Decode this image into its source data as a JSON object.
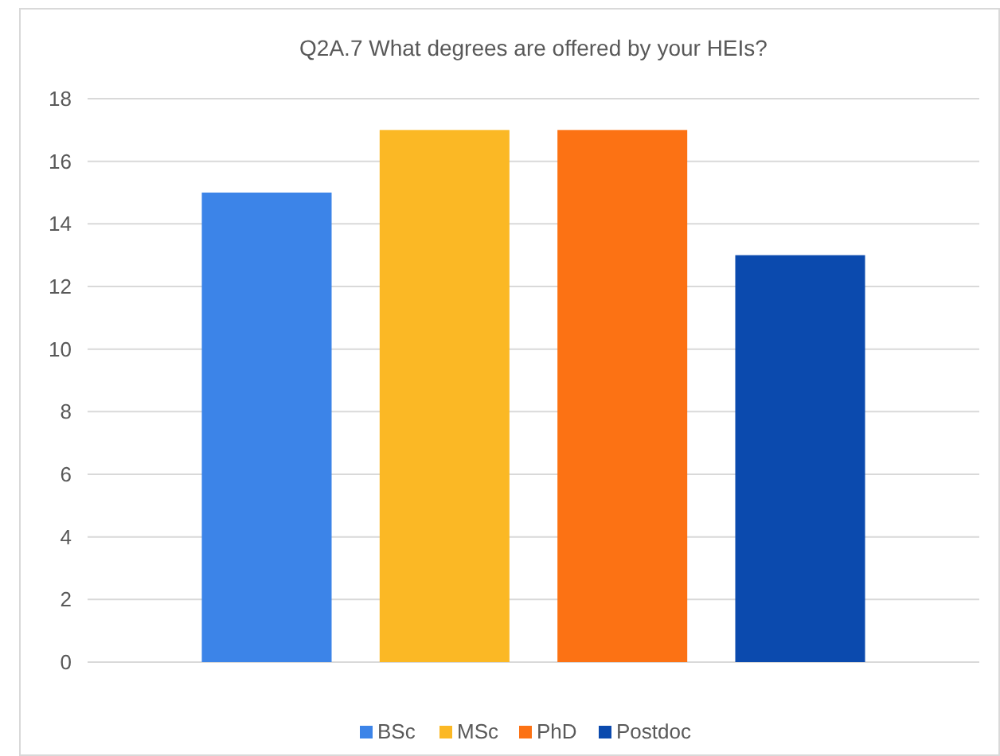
{
  "chart_data": {
    "type": "bar",
    "title": "Q2A.7 What degrees are offered by your HEIs?",
    "categories": [
      null
    ],
    "series": [
      {
        "name": "BSc",
        "color": "#3c84e8",
        "values": [
          15
        ]
      },
      {
        "name": "MSc",
        "color": "#fbb825",
        "values": [
          17
        ]
      },
      {
        "name": "PhD",
        "color": "#fc7214",
        "values": [
          17
        ]
      },
      {
        "name": "Postdoc",
        "color": "#0b4aae",
        "values": [
          13
        ]
      }
    ],
    "ylim": [
      0,
      18
    ],
    "yticks": [
      0,
      2,
      4,
      6,
      8,
      10,
      12,
      14,
      16,
      18
    ],
    "grid": "y",
    "legend": "bottom"
  }
}
